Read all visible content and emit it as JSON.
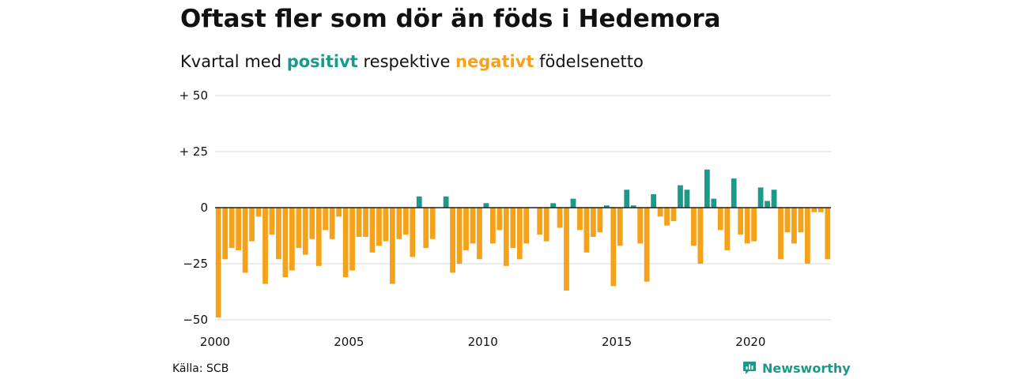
{
  "title": "Oftast fler som dör än föds i Hedemora",
  "subtitle": {
    "prefix": "Kvartal med ",
    "positive_word": "positivt",
    "middle": " respektive ",
    "negative_word": "negativt",
    "suffix": " födelsenetto"
  },
  "source": "Källa: SCB",
  "brand": "Newsworthy",
  "colors": {
    "positive": "#1a9a8a",
    "negative": "#f5a21b"
  },
  "chart_data": {
    "type": "bar",
    "x_start": 2000,
    "x_end": 2023,
    "ylim": [
      -50,
      50
    ],
    "y_ticks": [
      {
        "value": 50,
        "label": "+ 50"
      },
      {
        "value": 25,
        "label": "+ 25"
      },
      {
        "value": 0,
        "label": "0"
      },
      {
        "value": -25,
        "label": "−25"
      },
      {
        "value": -50,
        "label": "−50"
      }
    ],
    "x_ticks": [
      "2000",
      "2005",
      "2010",
      "2015",
      "2020"
    ],
    "values": [
      -49,
      -23,
      -18,
      -19,
      -29,
      -15,
      -4,
      -34,
      -12,
      -23,
      -31,
      -28,
      -18,
      -21,
      -14,
      -26,
      -10,
      -14,
      -4,
      -31,
      -28,
      -13,
      -13,
      -20,
      -17,
      -15,
      -34,
      -14,
      -12,
      -22,
      5,
      -18,
      -14,
      0,
      5,
      -29,
      -25,
      -19,
      -16,
      -23,
      2,
      -16,
      -10,
      -26,
      -18,
      -23,
      -16,
      0,
      -12,
      -15,
      2,
      -9,
      -37,
      4,
      -10,
      -20,
      -13,
      -11,
      1,
      -35,
      -17,
      8,
      1,
      -16,
      -33,
      6,
      -4,
      -8,
      -6,
      10,
      8,
      -17,
      -25,
      17,
      4,
      -10,
      -19,
      13,
      -12,
      -16,
      -15,
      9,
      3,
      8,
      -23,
      -11,
      -16,
      -11,
      -25,
      -2,
      -2,
      -23
    ]
  }
}
